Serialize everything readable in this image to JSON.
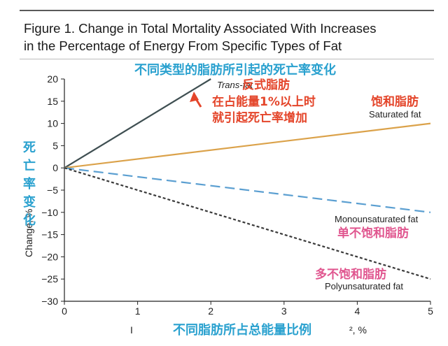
{
  "figure": {
    "title_line1": "Figure 1. Change in Total Mortality Associated With Increases",
    "title_line2": "in the Percentage of Energy From Specific Types of Fat"
  },
  "chart_data": {
    "type": "line",
    "title": "不同类型的脂肪所引起的死亡率变化",
    "xlabel_cn": "不同脂肪所占总能量比例",
    "xlabel_fragments": [
      "I",
      "², %"
    ],
    "ylabel_en": "Change, %",
    "ylabel_cn": [
      "死",
      "亡",
      "率",
      "变",
      "化"
    ],
    "xlim": [
      0,
      5
    ],
    "ylim": [
      -30,
      20
    ],
    "xticks": [
      0,
      1,
      2,
      3,
      4,
      5
    ],
    "yticks": [
      20,
      15,
      10,
      5,
      0,
      -5,
      -10,
      -15,
      -20,
      -25,
      -30
    ],
    "grid": false,
    "series": [
      {
        "name": "Trans-fat",
        "name_cn": "反式脂肪",
        "x": [
          0,
          2
        ],
        "y": [
          0,
          20
        ],
        "color": "#3f4f52",
        "dash": "solid"
      },
      {
        "name": "Saturated fat",
        "name_cn": "饱和脂肪",
        "x": [
          0,
          5
        ],
        "y": [
          0,
          10
        ],
        "color": "#dba24a",
        "dash": "solid"
      },
      {
        "name": "Monounsaturated fat",
        "name_cn": "单不饱和脂肪",
        "x": [
          0,
          5
        ],
        "y": [
          0,
          -10
        ],
        "color": "#5b9fd1",
        "dash": "long"
      },
      {
        "name": "Polyunsaturated fat",
        "name_cn": "多不饱和脂肪",
        "x": [
          0,
          5
        ],
        "y": [
          0,
          -25
        ],
        "color": "#3a3a3a",
        "dash": "short"
      }
    ],
    "annotations": {
      "trans_note_line1": "在占能量1%以上时",
      "trans_note_line2": "就引起死亡率增加",
      "arrow_color": "#e4452a"
    }
  }
}
